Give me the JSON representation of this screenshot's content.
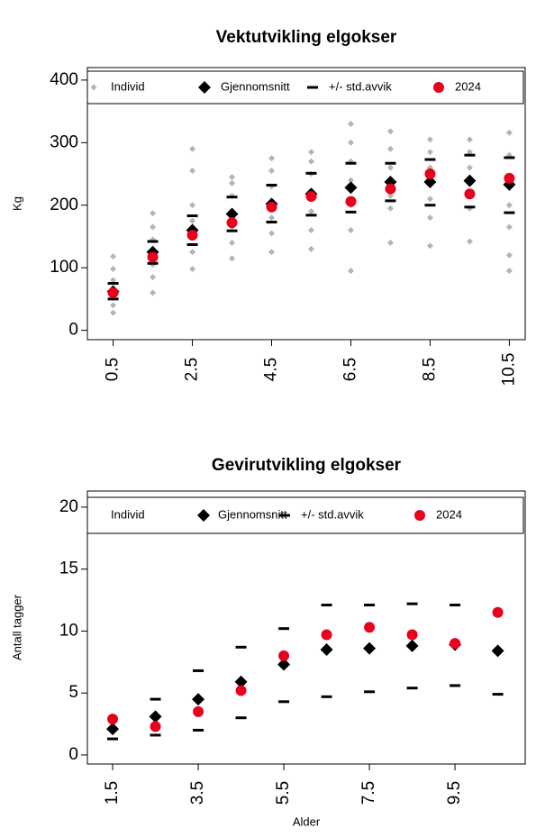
{
  "chart_data": [
    {
      "type": "scatter",
      "title": "Vektutvikling elgokser",
      "ylabel": "Kg",
      "x": [
        0.5,
        1.5,
        2.5,
        3.5,
        4.5,
        5.5,
        6.5,
        7.5,
        8.5,
        9.5,
        10.5
      ],
      "xlim": [
        -0.15,
        10.9
      ],
      "xticks": [
        0.5,
        2.5,
        4.5,
        6.5,
        8.5,
        10.5
      ],
      "ylim": [
        -15,
        420
      ],
      "yticks": [
        0,
        100,
        200,
        300,
        400
      ],
      "series": [
        {
          "name": "Individ",
          "color": "#b4b4b4",
          "marker": "small-diamond",
          "x": [
            0.5,
            0.5,
            0.5,
            0.5,
            0.5,
            0.5,
            0.5,
            1.5,
            1.5,
            1.5,
            1.5,
            1.5,
            1.5,
            1.5,
            2.5,
            2.5,
            2.5,
            2.5,
            2.5,
            2.5,
            2.5,
            3.5,
            3.5,
            3.5,
            3.5,
            3.5,
            3.5,
            3.5,
            4.5,
            4.5,
            4.5,
            4.5,
            4.5,
            4.5,
            4.5,
            5.5,
            5.5,
            5.5,
            5.5,
            5.5,
            5.5,
            5.5,
            6.5,
            6.5,
            6.5,
            6.5,
            6.5,
            6.5,
            6.5,
            7.5,
            7.5,
            7.5,
            7.5,
            7.5,
            7.5,
            7.5,
            8.5,
            8.5,
            8.5,
            8.5,
            8.5,
            8.5,
            8.5,
            9.5,
            9.5,
            9.5,
            9.5,
            9.5,
            9.5,
            9.5,
            10.5,
            10.5,
            10.5,
            10.5,
            10.5,
            10.5,
            10.5
          ],
          "values": [
            28,
            40,
            52,
            65,
            80,
            98,
            118,
            60,
            85,
            105,
            125,
            145,
            165,
            187,
            98,
            125,
            150,
            175,
            200,
            255,
            290,
            115,
            140,
            165,
            190,
            215,
            235,
            245,
            125,
            155,
            180,
            205,
            230,
            255,
            275,
            130,
            160,
            190,
            220,
            250,
            270,
            285,
            95,
            160,
            200,
            240,
            270,
            300,
            330,
            140,
            195,
            215,
            240,
            260,
            290,
            318,
            135,
            180,
            210,
            240,
            260,
            285,
            305,
            142,
            195,
            215,
            240,
            260,
            285,
            305,
            95,
            120,
            165,
            200,
            235,
            280,
            316
          ]
        },
        {
          "name": "Gjennomsnitt",
          "color": "#000000",
          "marker": "diamond",
          "values": [
            62,
            125,
            160,
            186,
            202,
            218,
            228,
            237,
            237,
            239,
            233
          ]
        },
        {
          "name": "+/- std.avvik",
          "color": "#000000",
          "marker": "dash",
          "upper": [
            75,
            142,
            183,
            213,
            232,
            251,
            267,
            267,
            273,
            280,
            276
          ],
          "lower": [
            50,
            107,
            137,
            159,
            173,
            184,
            189,
            207,
            200,
            197,
            188
          ]
        },
        {
          "name": "2024",
          "color": "#e8001c",
          "marker": "circle",
          "values": [
            60,
            117,
            152,
            172,
            197,
            214,
            206,
            226,
            250,
            218,
            243
          ]
        }
      ]
    },
    {
      "type": "scatter",
      "title": "Gevirutvikling elgokser",
      "ylabel": "Antall tagger",
      "xlabel": "Alder",
      "x": [
        1.5,
        2.5,
        3.5,
        4.5,
        5.5,
        6.5,
        7.5,
        8.5,
        9.5,
        10.5
      ],
      "xlim": [
        0.91,
        11.14
      ],
      "xticks": [
        1.5,
        3.5,
        5.5,
        7.5,
        9.5
      ],
      "ylim": [
        -0.73,
        21.3
      ],
      "yticks": [
        0,
        5,
        10,
        15,
        20
      ],
      "series": [
        {
          "name": "Individ",
          "color": "#b4b4b4",
          "marker": "small-diamond",
          "values": [
            null,
            null,
            null,
            null,
            null,
            null,
            null,
            null,
            null,
            null
          ]
        },
        {
          "name": "Gjennomsnitt",
          "color": "#000000",
          "marker": "diamond",
          "values": [
            2.1,
            3.1,
            4.5,
            5.9,
            7.3,
            8.5,
            8.6,
            8.8,
            8.9,
            8.4
          ]
        },
        {
          "name": "+/- std.avvik",
          "color": "#000000",
          "marker": "dash",
          "upper": [
            null,
            4.5,
            6.8,
            8.7,
            10.2,
            12.1,
            12.1,
            12.2,
            12.1,
            null
          ],
          "lower": [
            1.3,
            1.6,
            2.0,
            3.0,
            4.3,
            4.7,
            5.1,
            5.4,
            5.6,
            4.9
          ]
        },
        {
          "name": "2024",
          "color": "#e8001c",
          "marker": "circle",
          "values": [
            2.9,
            2.3,
            3.5,
            5.2,
            8.0,
            9.7,
            10.3,
            9.7,
            9.0,
            11.5
          ]
        }
      ]
    }
  ]
}
